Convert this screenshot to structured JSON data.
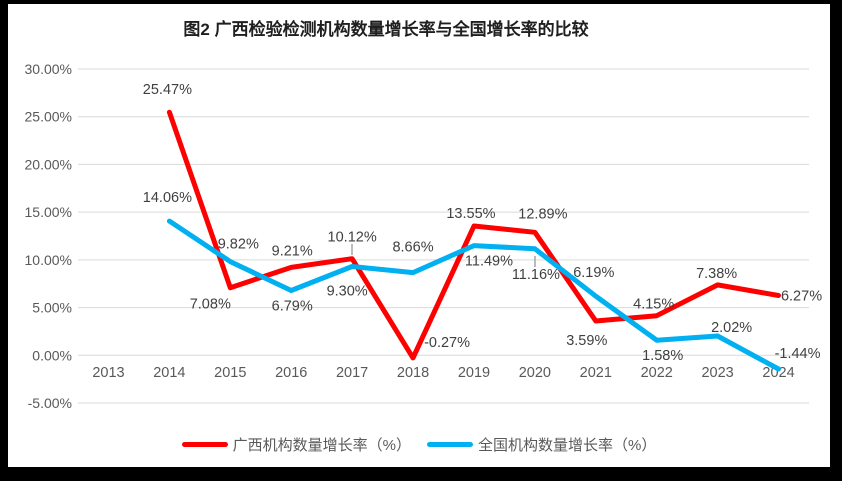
{
  "title": "图2 广西检验检测机构数量增长率与全国增长率的比较",
  "colors": {
    "frame": "#000000",
    "background": "#ffffff",
    "grid": "#d9d9d9",
    "tick_text": "#595959",
    "data_label": "#404040",
    "title_text": "#1f1f1f",
    "leader": "#a6a6a6",
    "guangxi_red": "#ff0000",
    "national_blue": "#00b0f0"
  },
  "chart_data": {
    "type": "line",
    "title": "图2 广西检验检测机构数量增长率与全国增长率的比较",
    "categories": [
      "2013",
      "2014",
      "2015",
      "2016",
      "2017",
      "2018",
      "2019",
      "2020",
      "2021",
      "2022",
      "2023",
      "2024"
    ],
    "series": [
      {
        "name": "广西机构数量增长率（%）",
        "color": "#ff0000",
        "values": [
          null,
          25.47,
          7.08,
          9.21,
          10.12,
          -0.27,
          13.55,
          12.89,
          3.59,
          4.15,
          7.38,
          6.27
        ],
        "data_labels": [
          "",
          "25.47%",
          "7.08%",
          "9.21%",
          "10.12%",
          "-0.27%",
          "13.55%",
          "12.89%",
          "3.59%",
          "4.15%",
          "7.38%",
          "6.27%"
        ]
      },
      {
        "name": "全国机构数量增长率（%）",
        "color": "#00b0f0",
        "values": [
          null,
          14.06,
          9.82,
          6.79,
          9.3,
          8.66,
          11.49,
          11.16,
          6.19,
          1.58,
          2.02,
          -1.44
        ],
        "data_labels": [
          "",
          "14.06%",
          "9.82%",
          "6.79%",
          "9.30%",
          "8.66%",
          "11.49%",
          "11.16%",
          "6.19%",
          "1.58%",
          "2.02%",
          "-1.44%"
        ]
      }
    ],
    "xlabel": "",
    "ylabel": "",
    "ylim": [
      -5,
      30
    ],
    "ytick_step": 5,
    "ytick_labels": [
      "30.00%",
      "25.00%",
      "20.00%",
      "15.00%",
      "10.00%",
      "5.00%",
      "0.00%",
      "-5.00%"
    ],
    "grid": true,
    "legend_position": "bottom",
    "label_format": "0.00%"
  }
}
